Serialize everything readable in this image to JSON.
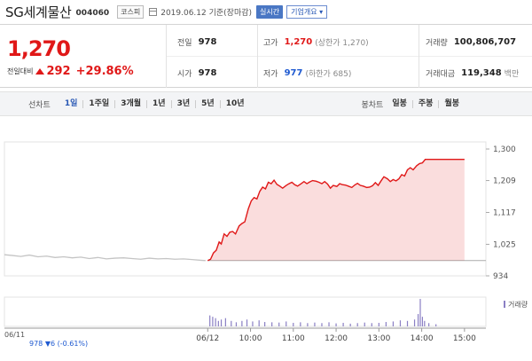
{
  "header": {
    "stock_name": "SG세계물산",
    "stock_code": "004060",
    "market": "코스피",
    "date_text": "2019.06.12 기준(장마감)",
    "realtime_label": "실시간",
    "company_info_label": "기업개요 ▾"
  },
  "summary": {
    "current_price": "1,270",
    "change_label": "전일대비",
    "change_amount": "292",
    "change_rate": "+29.86%",
    "prev_close_label": "전일",
    "prev_close": "978",
    "open_label": "시가",
    "open": "978",
    "high_label": "고가",
    "high": "1,270",
    "high_sub": "(상한가 1,270)",
    "low_label": "저가",
    "low": "977",
    "low_sub": "(하한가 685)",
    "volume_label": "거래량",
    "volume": "100,806,707",
    "amount_label": "거래대금",
    "amount": "119,348",
    "amount_unit": "백만"
  },
  "period_bar": {
    "line_label": "선차트",
    "periods": [
      "1일",
      "1주일",
      "3개월",
      "1년",
      "3년",
      "5년",
      "10년"
    ],
    "active_period": "1일",
    "candle_label": "봉차트",
    "candles": [
      "일봉",
      "주봉",
      "월봉"
    ]
  },
  "colors": {
    "up": "#e01818",
    "down": "#1f5ad1",
    "accent": "#4a77c4",
    "prev_day_line": "#c4c4c4",
    "volume_bar": "#8a7fc4"
  },
  "chart_data": {
    "type": "line",
    "y_ticks": [
      "1,300",
      "1,209",
      "1,117",
      "1,025",
      "934"
    ],
    "ylim": [
      934,
      1300
    ],
    "x_ticks": [
      "06/12",
      "10:00",
      "11:00",
      "12:00",
      "13:00",
      "14:00",
      "15:00"
    ],
    "x_tick_minutes": [
      0,
      60,
      120,
      180,
      240,
      300,
      360
    ],
    "xlim_minutes": [
      -285,
      390
    ],
    "baseline": 978,
    "prev_day": {
      "label": "06/11",
      "close_text": "978",
      "change_text": "▼6 (-0.61%)",
      "points": [
        [
          -285,
          995
        ],
        [
          -275,
          993
        ],
        [
          -262,
          990
        ],
        [
          -250,
          994
        ],
        [
          -238,
          989
        ],
        [
          -226,
          991
        ],
        [
          -214,
          987
        ],
        [
          -202,
          989
        ],
        [
          -190,
          986
        ],
        [
          -178,
          988
        ],
        [
          -166,
          984
        ],
        [
          -154,
          987
        ],
        [
          -142,
          983
        ],
        [
          -130,
          985
        ],
        [
          -118,
          986
        ],
        [
          -106,
          984
        ],
        [
          -94,
          982
        ],
        [
          -82,
          985
        ],
        [
          -70,
          983
        ],
        [
          -58,
          984
        ],
        [
          -46,
          982
        ],
        [
          -34,
          983
        ],
        [
          -22,
          981
        ],
        [
          -10,
          979
        ],
        [
          -3,
          978
        ]
      ]
    },
    "series": [
      {
        "values": [
          [
            0,
            978
          ],
          [
            4,
            982
          ],
          [
            8,
            1000
          ],
          [
            12,
            1008
          ],
          [
            16,
            1032
          ],
          [
            19,
            1026
          ],
          [
            23,
            1055
          ],
          [
            27,
            1048
          ],
          [
            31,
            1060
          ],
          [
            35,
            1062
          ],
          [
            39,
            1055
          ],
          [
            44,
            1078
          ],
          [
            48,
            1085
          ],
          [
            52,
            1090
          ],
          [
            57,
            1128
          ],
          [
            61,
            1150
          ],
          [
            65,
            1160
          ],
          [
            69,
            1156
          ],
          [
            73,
            1178
          ],
          [
            77,
            1190
          ],
          [
            81,
            1185
          ],
          [
            85,
            1204
          ],
          [
            89,
            1200
          ],
          [
            93,
            1210
          ],
          [
            97,
            1198
          ],
          [
            101,
            1193
          ],
          [
            105,
            1187
          ],
          [
            110,
            1195
          ],
          [
            114,
            1200
          ],
          [
            118,
            1204
          ],
          [
            122,
            1197
          ],
          [
            126,
            1193
          ],
          [
            131,
            1200
          ],
          [
            135,
            1206
          ],
          [
            139,
            1200
          ],
          [
            143,
            1205
          ],
          [
            147,
            1209
          ],
          [
            152,
            1207
          ],
          [
            156,
            1204
          ],
          [
            160,
            1200
          ],
          [
            164,
            1206
          ],
          [
            168,
            1199
          ],
          [
            172,
            1187
          ],
          [
            176,
            1195
          ],
          [
            181,
            1192
          ],
          [
            185,
            1200
          ],
          [
            189,
            1197
          ],
          [
            193,
            1196
          ],
          [
            197,
            1193
          ],
          [
            202,
            1189
          ],
          [
            206,
            1196
          ],
          [
            210,
            1201
          ],
          [
            214,
            1195
          ],
          [
            218,
            1193
          ],
          [
            223,
            1189
          ],
          [
            227,
            1190
          ],
          [
            231,
            1194
          ],
          [
            235,
            1203
          ],
          [
            239,
            1195
          ],
          [
            243,
            1208
          ],
          [
            247,
            1220
          ],
          [
            252,
            1214
          ],
          [
            256,
            1206
          ],
          [
            260,
            1212
          ],
          [
            264,
            1208
          ],
          [
            268,
            1214
          ],
          [
            272,
            1226
          ],
          [
            276,
            1222
          ],
          [
            280,
            1240
          ],
          [
            284,
            1246
          ],
          [
            288,
            1240
          ],
          [
            293,
            1252
          ],
          [
            297,
            1258
          ],
          [
            301,
            1260
          ],
          [
            305,
            1270
          ],
          [
            345,
            1270
          ],
          [
            360,
            1270
          ]
        ]
      }
    ],
    "volume": {
      "legend": "거래량",
      "bars": [
        [
          3,
          0.4
        ],
        [
          7,
          0.35
        ],
        [
          11,
          0.3
        ],
        [
          15,
          0.2
        ],
        [
          19,
          0.25
        ],
        [
          25,
          0.3
        ],
        [
          33,
          0.2
        ],
        [
          40,
          0.15
        ],
        [
          48,
          0.2
        ],
        [
          55,
          0.25
        ],
        [
          63,
          0.18
        ],
        [
          72,
          0.22
        ],
        [
          80,
          0.16
        ],
        [
          90,
          0.15
        ],
        [
          100,
          0.14
        ],
        [
          110,
          0.18
        ],
        [
          120,
          0.13
        ],
        [
          130,
          0.15
        ],
        [
          140,
          0.12
        ],
        [
          150,
          0.14
        ],
        [
          160,
          0.12
        ],
        [
          170,
          0.15
        ],
        [
          180,
          0.11
        ],
        [
          190,
          0.13
        ],
        [
          200,
          0.1
        ],
        [
          210,
          0.12
        ],
        [
          220,
          0.14
        ],
        [
          230,
          0.12
        ],
        [
          240,
          0.13
        ],
        [
          250,
          0.16
        ],
        [
          260,
          0.18
        ],
        [
          270,
          0.22
        ],
        [
          280,
          0.2
        ],
        [
          290,
          0.25
        ],
        [
          295,
          0.45
        ],
        [
          298,
          1.0
        ],
        [
          301,
          0.35
        ],
        [
          304,
          0.2
        ],
        [
          310,
          0.12
        ],
        [
          320,
          0.08
        ]
      ]
    }
  }
}
